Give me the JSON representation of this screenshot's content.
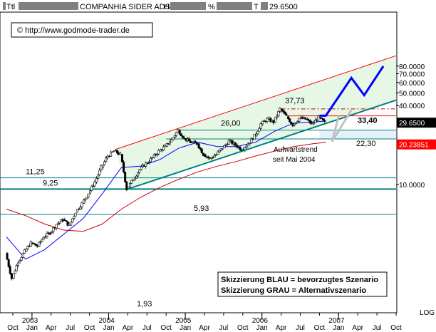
{
  "header": {
    "label_ttl": "Ttl",
    "title": "COMPANHIA SIDER ADS",
    "label_h": "H",
    "label_pct": "%",
    "label_t": "T",
    "value": "29.6500"
  },
  "copyright": "© http://www.godmode-trader.de",
  "chart_data": {
    "type": "candlestick",
    "title": "COMPANHIA SIDER ADS",
    "y_scale": "log",
    "y_ticks": [
      {
        "value": 80,
        "label": "80.0000"
      },
      {
        "value": 70,
        "label": "70.0000"
      },
      {
        "value": 60,
        "label": "60.0000"
      },
      {
        "value": 50,
        "label": "50.0000"
      },
      {
        "value": 40,
        "label": "40.0000"
      },
      {
        "value": 10,
        "label": "10.0000"
      }
    ],
    "y_axis_note": "LOG",
    "x_months": [
      {
        "date": "2002-10",
        "label": "Oct"
      },
      {
        "date": "2003-01",
        "label": "Jan"
      },
      {
        "date": "2003-04",
        "label": "Apr"
      },
      {
        "date": "2003-07",
        "label": "Jul"
      },
      {
        "date": "2003-10",
        "label": "Oct"
      },
      {
        "date": "2004-01",
        "label": "Jan"
      },
      {
        "date": "2004-04",
        "label": "Apr"
      },
      {
        "date": "2004-07",
        "label": "Jul"
      },
      {
        "date": "2004-10",
        "label": "Oct"
      },
      {
        "date": "2005-01",
        "label": "Jan"
      },
      {
        "date": "2005-04",
        "label": "Apr"
      },
      {
        "date": "2005-07",
        "label": "Jul"
      },
      {
        "date": "2005-10",
        "label": "Oct"
      },
      {
        "date": "2006-01",
        "label": "Jan"
      },
      {
        "date": "2006-04",
        "label": "Apr"
      },
      {
        "date": "2006-07",
        "label": "Jul"
      },
      {
        "date": "2006-10",
        "label": "Oct"
      },
      {
        "date": "2007-01",
        "label": "Jan"
      },
      {
        "date": "2007-04",
        "label": "Apr"
      },
      {
        "date": "2007-07",
        "label": "Jul"
      },
      {
        "date": "2007-10",
        "label": "Oct"
      }
    ],
    "x_years": [
      {
        "date": "2003-01",
        "label": "2003"
      },
      {
        "date": "2004-01",
        "label": "2004"
      },
      {
        "date": "2005-01",
        "label": "2005"
      },
      {
        "date": "2006-01",
        "label": "2006"
      },
      {
        "date": "2007-01",
        "label": "2007"
      }
    ],
    "price_path": [
      [
        "2002-09",
        3.0
      ],
      [
        "2002-10",
        1.93
      ],
      [
        "2002-11",
        2.6
      ],
      [
        "2002-12",
        3.1
      ],
      [
        "2003-01",
        3.6
      ],
      [
        "2003-02",
        3.4
      ],
      [
        "2003-03",
        4.0
      ],
      [
        "2003-04",
        4.3
      ],
      [
        "2003-05",
        5.0
      ],
      [
        "2003-06",
        5.4
      ],
      [
        "2003-07",
        4.9
      ],
      [
        "2003-08",
        6.2
      ],
      [
        "2003-09",
        7.2
      ],
      [
        "2003-10",
        8.6
      ],
      [
        "2003-11",
        10.5
      ],
      [
        "2003-12",
        13.5
      ],
      [
        "2004-01",
        16.5
      ],
      [
        "2004-02",
        18.0
      ],
      [
        "2004-03",
        17.0
      ],
      [
        "2004-04",
        9.25
      ],
      [
        "2004-05",
        11.0
      ],
      [
        "2004-06",
        13.0
      ],
      [
        "2004-07",
        14.5
      ],
      [
        "2004-08",
        16.0
      ],
      [
        "2004-09",
        18.0
      ],
      [
        "2004-10",
        19.5
      ],
      [
        "2004-11",
        22.0
      ],
      [
        "2004-12",
        26.0
      ],
      [
        "2005-01",
        22.5
      ],
      [
        "2005-02",
        21.0
      ],
      [
        "2005-03",
        20.5
      ],
      [
        "2005-04",
        17.0
      ],
      [
        "2005-05",
        15.8
      ],
      [
        "2005-06",
        17.0
      ],
      [
        "2005-07",
        19.0
      ],
      [
        "2005-08",
        21.5
      ],
      [
        "2005-09",
        20.0
      ],
      [
        "2005-10",
        18.5
      ],
      [
        "2005-11",
        20.5
      ],
      [
        "2005-12",
        23.5
      ],
      [
        "2006-01",
        29.0
      ],
      [
        "2006-02",
        31.5
      ],
      [
        "2006-03",
        30.0
      ],
      [
        "2006-04",
        37.73
      ],
      [
        "2006-05",
        33.0
      ],
      [
        "2006-06",
        28.5
      ],
      [
        "2006-07",
        32.0
      ],
      [
        "2006-08",
        31.5
      ],
      [
        "2006-09",
        29.0
      ],
      [
        "2006-10",
        32.5
      ],
      [
        "2006-11",
        29.65
      ]
    ],
    "last_price": 29.65,
    "series": [
      {
        "name": "MA short",
        "color": "#0000ff",
        "points": [
          [
            "2002-09",
            4.0
          ],
          [
            "2002-12",
            2.7
          ],
          [
            "2003-03",
            3.2
          ],
          [
            "2003-06",
            4.2
          ],
          [
            "2003-09",
            5.5
          ],
          [
            "2003-12",
            8.5
          ],
          [
            "2004-03",
            13.5
          ],
          [
            "2004-06",
            13.8
          ],
          [
            "2004-09",
            15.5
          ],
          [
            "2004-12",
            19.0
          ],
          [
            "2005-03",
            21.0
          ],
          [
            "2005-06",
            19.5
          ],
          [
            "2005-09",
            19.5
          ],
          [
            "2005-12",
            21.0
          ],
          [
            "2006-03",
            25.5
          ],
          [
            "2006-06",
            29.5
          ],
          [
            "2006-09",
            30.0
          ],
          [
            "2006-11",
            30.5
          ]
        ]
      },
      {
        "name": "MA long",
        "color": "#cc0000",
        "points": [
          [
            "2002-09",
            6.5
          ],
          [
            "2002-12",
            5.8
          ],
          [
            "2003-03",
            5.0
          ],
          [
            "2003-06",
            4.5
          ],
          [
            "2003-09",
            4.4
          ],
          [
            "2003-12",
            5.0
          ],
          [
            "2004-03",
            6.5
          ],
          [
            "2004-06",
            8.0
          ],
          [
            "2004-09",
            9.5
          ],
          [
            "2004-12",
            11.0
          ],
          [
            "2005-03",
            12.5
          ],
          [
            "2005-06",
            13.8
          ],
          [
            "2005-09",
            15.0
          ],
          [
            "2005-12",
            16.5
          ],
          [
            "2006-03",
            18.0
          ],
          [
            "2006-06",
            19.5
          ],
          [
            "2006-09",
            20.5
          ],
          [
            "2006-11",
            21.0
          ]
        ]
      }
    ],
    "trend_lines": [
      {
        "name": "upper-channel-line",
        "color": "#ff0000",
        "from": [
          "2004-02",
          18.5
        ],
        "to": [
          "2007-10",
          96.0
        ]
      },
      {
        "name": "lower-trend-line",
        "color": "#008080",
        "from": [
          "2004-04",
          9.25
        ],
        "to": [
          "2007-10",
          44.0
        ]
      }
    ],
    "horizontal_lines": [
      {
        "value": 37.73,
        "label": "37,73",
        "color": "#cc0000",
        "style": "dash-dot"
      },
      {
        "value": 33.4,
        "label": "33,40",
        "color": "#ff0000",
        "style": "solid"
      },
      {
        "value": 26.0,
        "label": "26,00",
        "color": "#008080",
        "style": "solid"
      },
      {
        "value": 22.3,
        "label": "22,30",
        "color": "#008080",
        "style": "solid"
      },
      {
        "value": 11.25,
        "label": "11,25",
        "color": "#008080",
        "style": "solid"
      },
      {
        "value": 9.25,
        "label": "9,25",
        "color": "#008080",
        "style": "thick"
      },
      {
        "value": 5.93,
        "label": "5,93",
        "color": "#008080",
        "style": "solid"
      }
    ],
    "low_label": "1,93",
    "price_tags": [
      {
        "value": 29.65,
        "label": "29.6500",
        "bg": "#000000",
        "fg": "#ffffff"
      },
      {
        "value": 20.23851,
        "label": "20.23851",
        "bg": "#ff0000",
        "fg": "#ffffff"
      }
    ],
    "scenarios": [
      {
        "name": "blue-scenario",
        "color": "#0000ff",
        "points": [
          [
            "2006-10",
            33.5
          ],
          [
            "2006-11",
            33.5
          ],
          [
            "2007-03",
            65.0
          ],
          [
            "2007-05",
            48.0
          ],
          [
            "2007-08",
            80.0
          ]
        ]
      },
      {
        "name": "gray-scenario",
        "color": "#c0c0c0",
        "points": [
          [
            "2007-01",
            33.4
          ],
          [
            "2006-12",
            21.3
          ],
          [
            "2007-03",
            37.0
          ]
        ]
      }
    ],
    "annotations": {
      "trend_note_line1": "Aufwärtstrend",
      "trend_note_line2": "seit Mai 2004",
      "legend_line1": "Skizzierung BLAU = bevorzugtes Szenario",
      "legend_line2": "Skizzierung GRAU = Alternativszenario"
    }
  }
}
